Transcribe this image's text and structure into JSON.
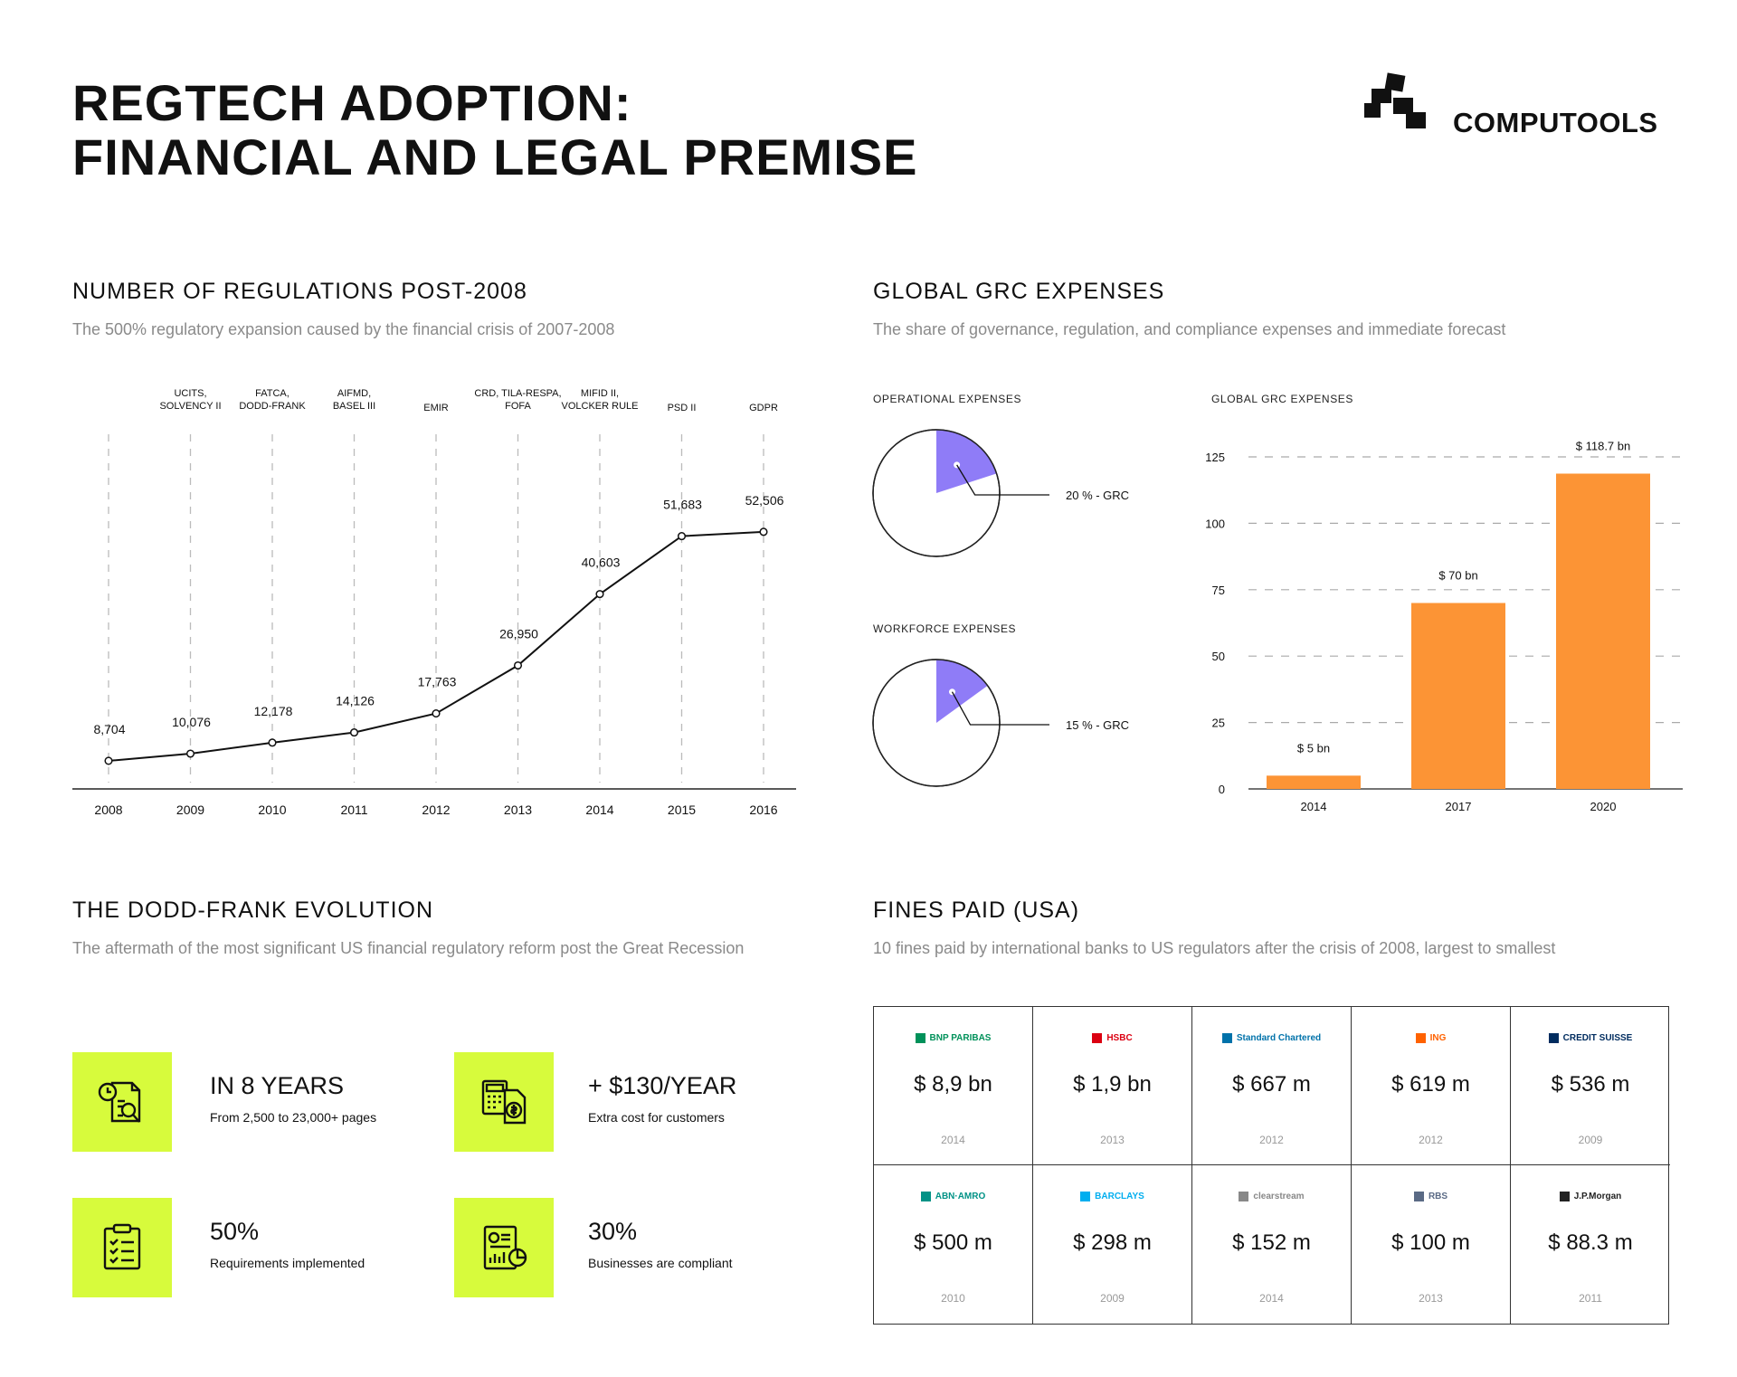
{
  "header": {
    "title": "REGTECH ADOPTION:\nFINANCIAL AND LEGAL PREMISE",
    "logo_text": "COMPUTOOLS"
  },
  "regulations": {
    "title": "NUMBER OF REGULATIONS POST-2008",
    "subtitle": "The 500% regulatory expansion caused by the financial crisis of 2007-2008"
  },
  "grc": {
    "title": "GLOBAL GRC EXPENSES",
    "subtitle": "The share of governance, regulation, and compliance expenses and immediate forecast",
    "operational_label": "OPERATIONAL EXPENSES",
    "workforce_label": "WORKFORCE EXPENSES",
    "bar_label": "GLOBAL GRC EXPENSES"
  },
  "dodd_frank": {
    "title": "THE DODD-FRANK EVOLUTION",
    "subtitle": "The aftermath of the most significant US financial regulatory reform post the Great Recession",
    "stats": [
      {
        "value": "IN 8 YEARS",
        "desc": "From 2,500 to 23,000+ pages",
        "icon": "clock-document-search-icon"
      },
      {
        "value": "+ $130/YEAR",
        "desc": "Extra cost for customers",
        "icon": "calculator-dollar-icon"
      },
      {
        "value": "50%",
        "desc": "Requirements implemented",
        "icon": "clipboard-checklist-icon"
      },
      {
        "value": "30%",
        "desc": "Businesses are compliant",
        "icon": "report-chart-icon"
      }
    ]
  },
  "fines": {
    "title": "FINES PAID (USA)",
    "subtitle": "10 fines paid by international banks to US regulators after the crisis of 2008, largest to smallest",
    "items": [
      {
        "bank": "BNP PARIBAS",
        "amount": "$ 8,9 bn",
        "year": "2014",
        "color": "#00915a"
      },
      {
        "bank": "HSBC",
        "amount": "$ 1,9 bn",
        "year": "2013",
        "color": "#db0011"
      },
      {
        "bank": "Standard Chartered",
        "amount": "$ 667 m",
        "year": "2012",
        "color": "#0072aa"
      },
      {
        "bank": "ING",
        "amount": "$ 619 m",
        "year": "2012",
        "color": "#ff6200"
      },
      {
        "bank": "CREDIT SUISSE",
        "amount": "$ 536 m",
        "year": "2009",
        "color": "#002c5f"
      },
      {
        "bank": "ABN·AMRO",
        "amount": "$ 500 m",
        "year": "2010",
        "color": "#009286"
      },
      {
        "bank": "BARCLAYS",
        "amount": "$ 298 m",
        "year": "2009",
        "color": "#00aeef"
      },
      {
        "bank": "clearstream",
        "amount": "$ 152 m",
        "year": "2014",
        "color": "#888888"
      },
      {
        "bank": "RBS",
        "amount": "$ 100 m",
        "year": "2013",
        "color": "#5a6a85"
      },
      {
        "bank": "J.P.Morgan",
        "amount": "$ 88.3 m",
        "year": "2011",
        "color": "#222222"
      }
    ]
  },
  "chart_data": [
    {
      "type": "line",
      "title": "NUMBER OF REGULATIONS POST-2008",
      "categories": [
        "2008",
        "2009",
        "2010",
        "2011",
        "2012",
        "2013",
        "2014",
        "2015",
        "2016"
      ],
      "values": [
        8704,
        10076,
        12178,
        14126,
        17763,
        26950,
        40603,
        51683,
        52506
      ],
      "value_labels": [
        "8,704",
        "10,076",
        "12,178",
        "14,126",
        "17,763",
        "26,950",
        "40,603",
        "51,683",
        "52,506"
      ],
      "annotations": [
        "",
        "UCITS,\nSOLVENCY II",
        "FATCA,\nDODD-FRANK",
        "AIFMD,\nBASEL III",
        "EMIR",
        "CRD, TILA-RESPA,\nFOFA",
        "MIFID II,\nVOLCKER RULE",
        "PSD II",
        "GDPR"
      ],
      "color": "#111111"
    },
    {
      "type": "pie",
      "title": "OPERATIONAL EXPENSES",
      "values": [
        20,
        80
      ],
      "labels": [
        "20 % -  GRC",
        ""
      ],
      "colors": [
        "#8f7cf7",
        "#ffffff"
      ]
    },
    {
      "type": "pie",
      "title": "WORKFORCE EXPENSES",
      "values": [
        15,
        85
      ],
      "labels": [
        "15 % -  GRC",
        ""
      ],
      "colors": [
        "#8f7cf7",
        "#ffffff"
      ]
    },
    {
      "type": "bar",
      "title": "GLOBAL GRC EXPENSES",
      "categories": [
        "2014",
        "2017",
        "2020"
      ],
      "values": [
        5,
        70,
        118.7
      ],
      "value_labels": [
        "$ 5 bn",
        "$ 70 bn",
        "$ 118.7 bn"
      ],
      "yticks": [
        0,
        25,
        50,
        75,
        100,
        125
      ],
      "ylim": [
        0,
        125
      ],
      "color": "#fc9435",
      "grid": true
    }
  ]
}
